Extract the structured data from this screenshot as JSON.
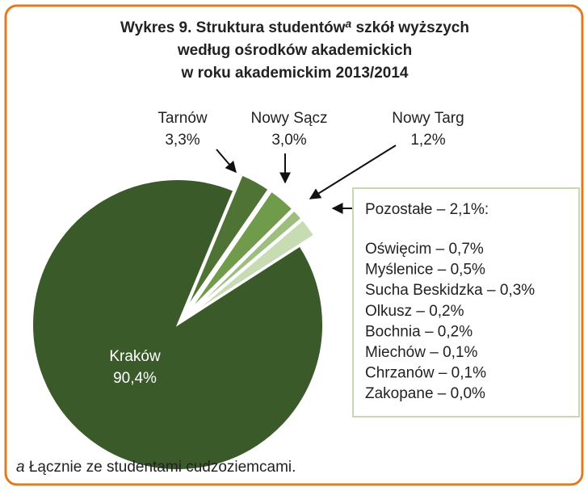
{
  "chart_data": {
    "type": "pie",
    "title_parts": [
      "Wykres 9. Struktura studentów",
      "a",
      " szkół wyższych",
      "według ośrodków akademickich",
      "w roku akademickim 2013/2014"
    ],
    "categories": [
      "Kraków",
      "Tarnów",
      "Nowy Sącz",
      "Nowy Targ",
      "Pozostałe"
    ],
    "values": [
      90.4,
      3.3,
      3.0,
      1.2,
      2.1
    ],
    "value_labels": [
      "90,4%",
      "3,3%",
      "3,0%",
      "1,2%",
      "2,1%:"
    ],
    "colors": [
      "#3b5a2a",
      "#4f7334",
      "#6f9b4a",
      "#9cbf80",
      "#c8dcb4"
    ],
    "separator": " – ",
    "others": {
      "categories": [
        "Oświęcim",
        "Myślenice",
        "Sucha Beskidzka",
        "Olkusz",
        "Bochnia",
        "Miechów",
        "Chrzanów",
        "Zakopane"
      ],
      "values": [
        0.7,
        0.5,
        0.3,
        0.2,
        0.2,
        0.1,
        0.1,
        0.0
      ],
      "value_labels": [
        "0,7%",
        "0,5%",
        "0,3%",
        "0,2%",
        "0,2%",
        "0,1%",
        "0,1%",
        "0,0%"
      ]
    },
    "footnote_marker": "a",
    "footnote": " Łącznie ze studentami cudzoziemcami."
  }
}
